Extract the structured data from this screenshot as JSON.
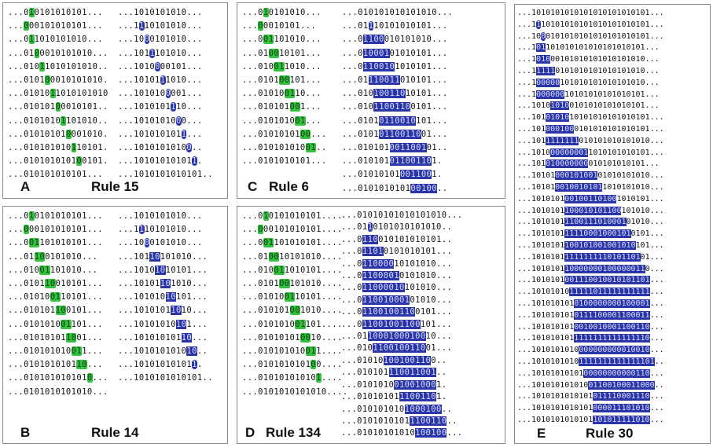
{
  "panels": [
    {
      "id": "A",
      "letter": "A",
      "title": "Rule 15"
    },
    {
      "id": "B",
      "letter": "B",
      "title": "Rule 14"
    },
    {
      "id": "C",
      "letter": "C",
      "title": "Rule 6"
    },
    {
      "id": "D",
      "letter": "D",
      "title": "Rule 134"
    },
    {
      "id": "E",
      "letter": "E",
      "title": "Rule 30"
    }
  ],
  "colors": {
    "green_cell": "#33c23f",
    "blue_cell": "#2a36a8",
    "border": "#8a8a8a"
  },
  "grids": {
    "A": {
      "left": [
        "...0{1}0101010101...",
        "...{0}00101010101...",
        "...0{1}1010101010...",
        "...01{0}0010101010...",
        "...010{1}1010101010..",
        "...0101{0}0010101010.",
        "...01010{1}1010101010",
        "...010101{0}0010101..",
        "...0101010{1}101010..",
        "...01010101{0}001010.",
        "...010101010{1}10101.",
        "...0101010101{0}0101.",
        "...010101010101..."
      ],
      "right": [
        "...1010101010...",
        "...1[1]10101010...",
        "...10[0]0101010...",
        "...101[1]101010...",
        "...1010[0]00101...",
        "...10101[1]1010...",
        "...101010[0]001...",
        "...1010101[1]10...",
        "...10101010[0]0...",
        "...101010101[1]...",
        "...1010101010[0]..",
        "...10101010101[1].",
        "...1010101010101.."
      ]
    },
    "B": {
      "left": [
        "...0{1}0101010101...",
        "...{0}00101010101...",
        "...0{01}101010101...",
        "...01{10}0101010...",
        "...010{01}101010...",
        "...0101{10}010101...",
        "...01010{01}10101...",
        "...010101{10}0101...",
        "...0101010{01}101...",
        "...01010101{10}01...",
        "...010101010{01}1...",
        "...0101010101{10}...",
        "...010101010101{0}...",
        "...0101010101010..."
      ],
      "right": [
        "...1010101010...",
        "...1[1]10101010...",
        "...10[0]0101010...",
        "...101[10]101010...",
        "...1010[10]10101...",
        "...10101[10]1010...",
        "...101010[10]101...",
        "...1010101[10]10...",
        "...10101010[10]1...",
        "...101010101[10]...",
        "...1010101010[10]..",
        "...10101010101[1].",
        "...1010101010101.."
      ]
    },
    "C": {
      "left": [
        "...0{1}0101010...",
        "...{0}0010101...",
        "...0{01}101010...",
        "...01{00}10101...",
        "...010{01}1010...",
        "...0101{00}101...",
        "...01010{01}10...",
        "...010101{00}1...",
        "...0101010{01}...",
        "...01010101{00}...",
        "...010101010{01}..",
        "...0101010101..."
      ],
      "right": [
        "...010101010101010...",
        "...01[1]10101010101...",
        "...0[1100]010101010...",
        "...0[10001]01010101...",
        "...0[110010]1010101...",
        "...01[110011]010101...",
        "...010[100110]10101...",
        "...010[1100110]0101...",
        "...0101[0110010]101...",
        "...0101[01100110]01...",
        "...010101[0011001]01..",
        "...010101[01100110]1.",
        "...01010101[001100]1.",
        "...0101010101[00100].."
      ]
    },
    "D": {
      "left": [
        "...0{1}0101010101....",
        "...{0}00101010101....",
        "...0{01}101010101....",
        "...01{00}10101010....",
        "...010{01}1010101....",
        "...0101{00}101010....",
        "...01010{01}10101....",
        "...010101{00}1010....",
        "...0101010{01}101....",
        "...01010101{00}10....",
        "...010101010{01}1....",
        "...0101010101{0}0....",
        "...01010101010{1}....",
        "...0101010101010...."
      ],
      "right": [
        "...01010101010101010...",
        "...01[1]0101010101010..",
        "...0[110]010101010101..",
        "...0[1101]0101010101...",
        "...0[110000]10101010...",
        "...0[1100001]0101010...",
        "...0[11000010]101010...",
        "...0[110010001]01010...",
        "...0[1100100110]0101...",
        "...0[11001001100]101...",
        "...01[10001000100]10...",
        "...010[1100100110]01...",
        "...01010[100100110]0..",
        "...010101[110011001]..",
        "...0101010[01001000]1.",
        "...01010101[1100110]1.",
        "...010101010[1000100]..",
        "...0101010101[1100110]..",
        "...01010101010[100100]..."
      ]
    },
    "E": {
      "left": [
        "...1010101010101010101010101...",
        "...1[1]10101010101010101010101...",
        "...10[0]0101010101010101010101...",
        "...1[01]101010101010101010101...",
        "...1[010]00101010101010101010...",
        "...1[1111]0101010101010101010...",
        "...1[00000]101010101010101010...",
        "...1[000000]10101010101010101...",
        "...1010[1010]0101010101010101...",
        "...101[01010]10101010101010101...",
        "...101[000100]0101010101010101...",
        "...101[1111111]010101010101010...",
        "...1010[00000001]1010101010101...",
        "...101[010000000]010101010101...",
        "...10101[000101001]01010101010...",
        "...10101[0010010101]1010101010...",
        "...1010101[00100110100]1010101...",
        "...1010101[100010101100]101010...",
        "...1010101[1100111010001]01010...",
        "...1010101[11110001000101]0101...",
        "...1010101[100101001001010]101...",
        "...1010101[1111111110101101]01...",
        "...1010101[10000000100000011]0...",
        "...1010101[001110010010101101]...",
        "...10101010[11111011111111111]...",
        "...101010101[0100000000100001]...",
        "...101010101[0111100001100011]...",
        "...101010101[0010010001100110]...",
        "...101010101[1111111111111110]...",
        "...1010101010[000000000010010]...",
        "...1010101010[1111111111111101]..",
        "...10101010101[00000000000110]...",
        "...101010101010[01100100011000]..",
        "...1010101010101[011110001110]...",
        "...1010101010101[000011101010]...",
        "...1010101010101[101011111010]..."
      ],
      "right": []
    }
  }
}
